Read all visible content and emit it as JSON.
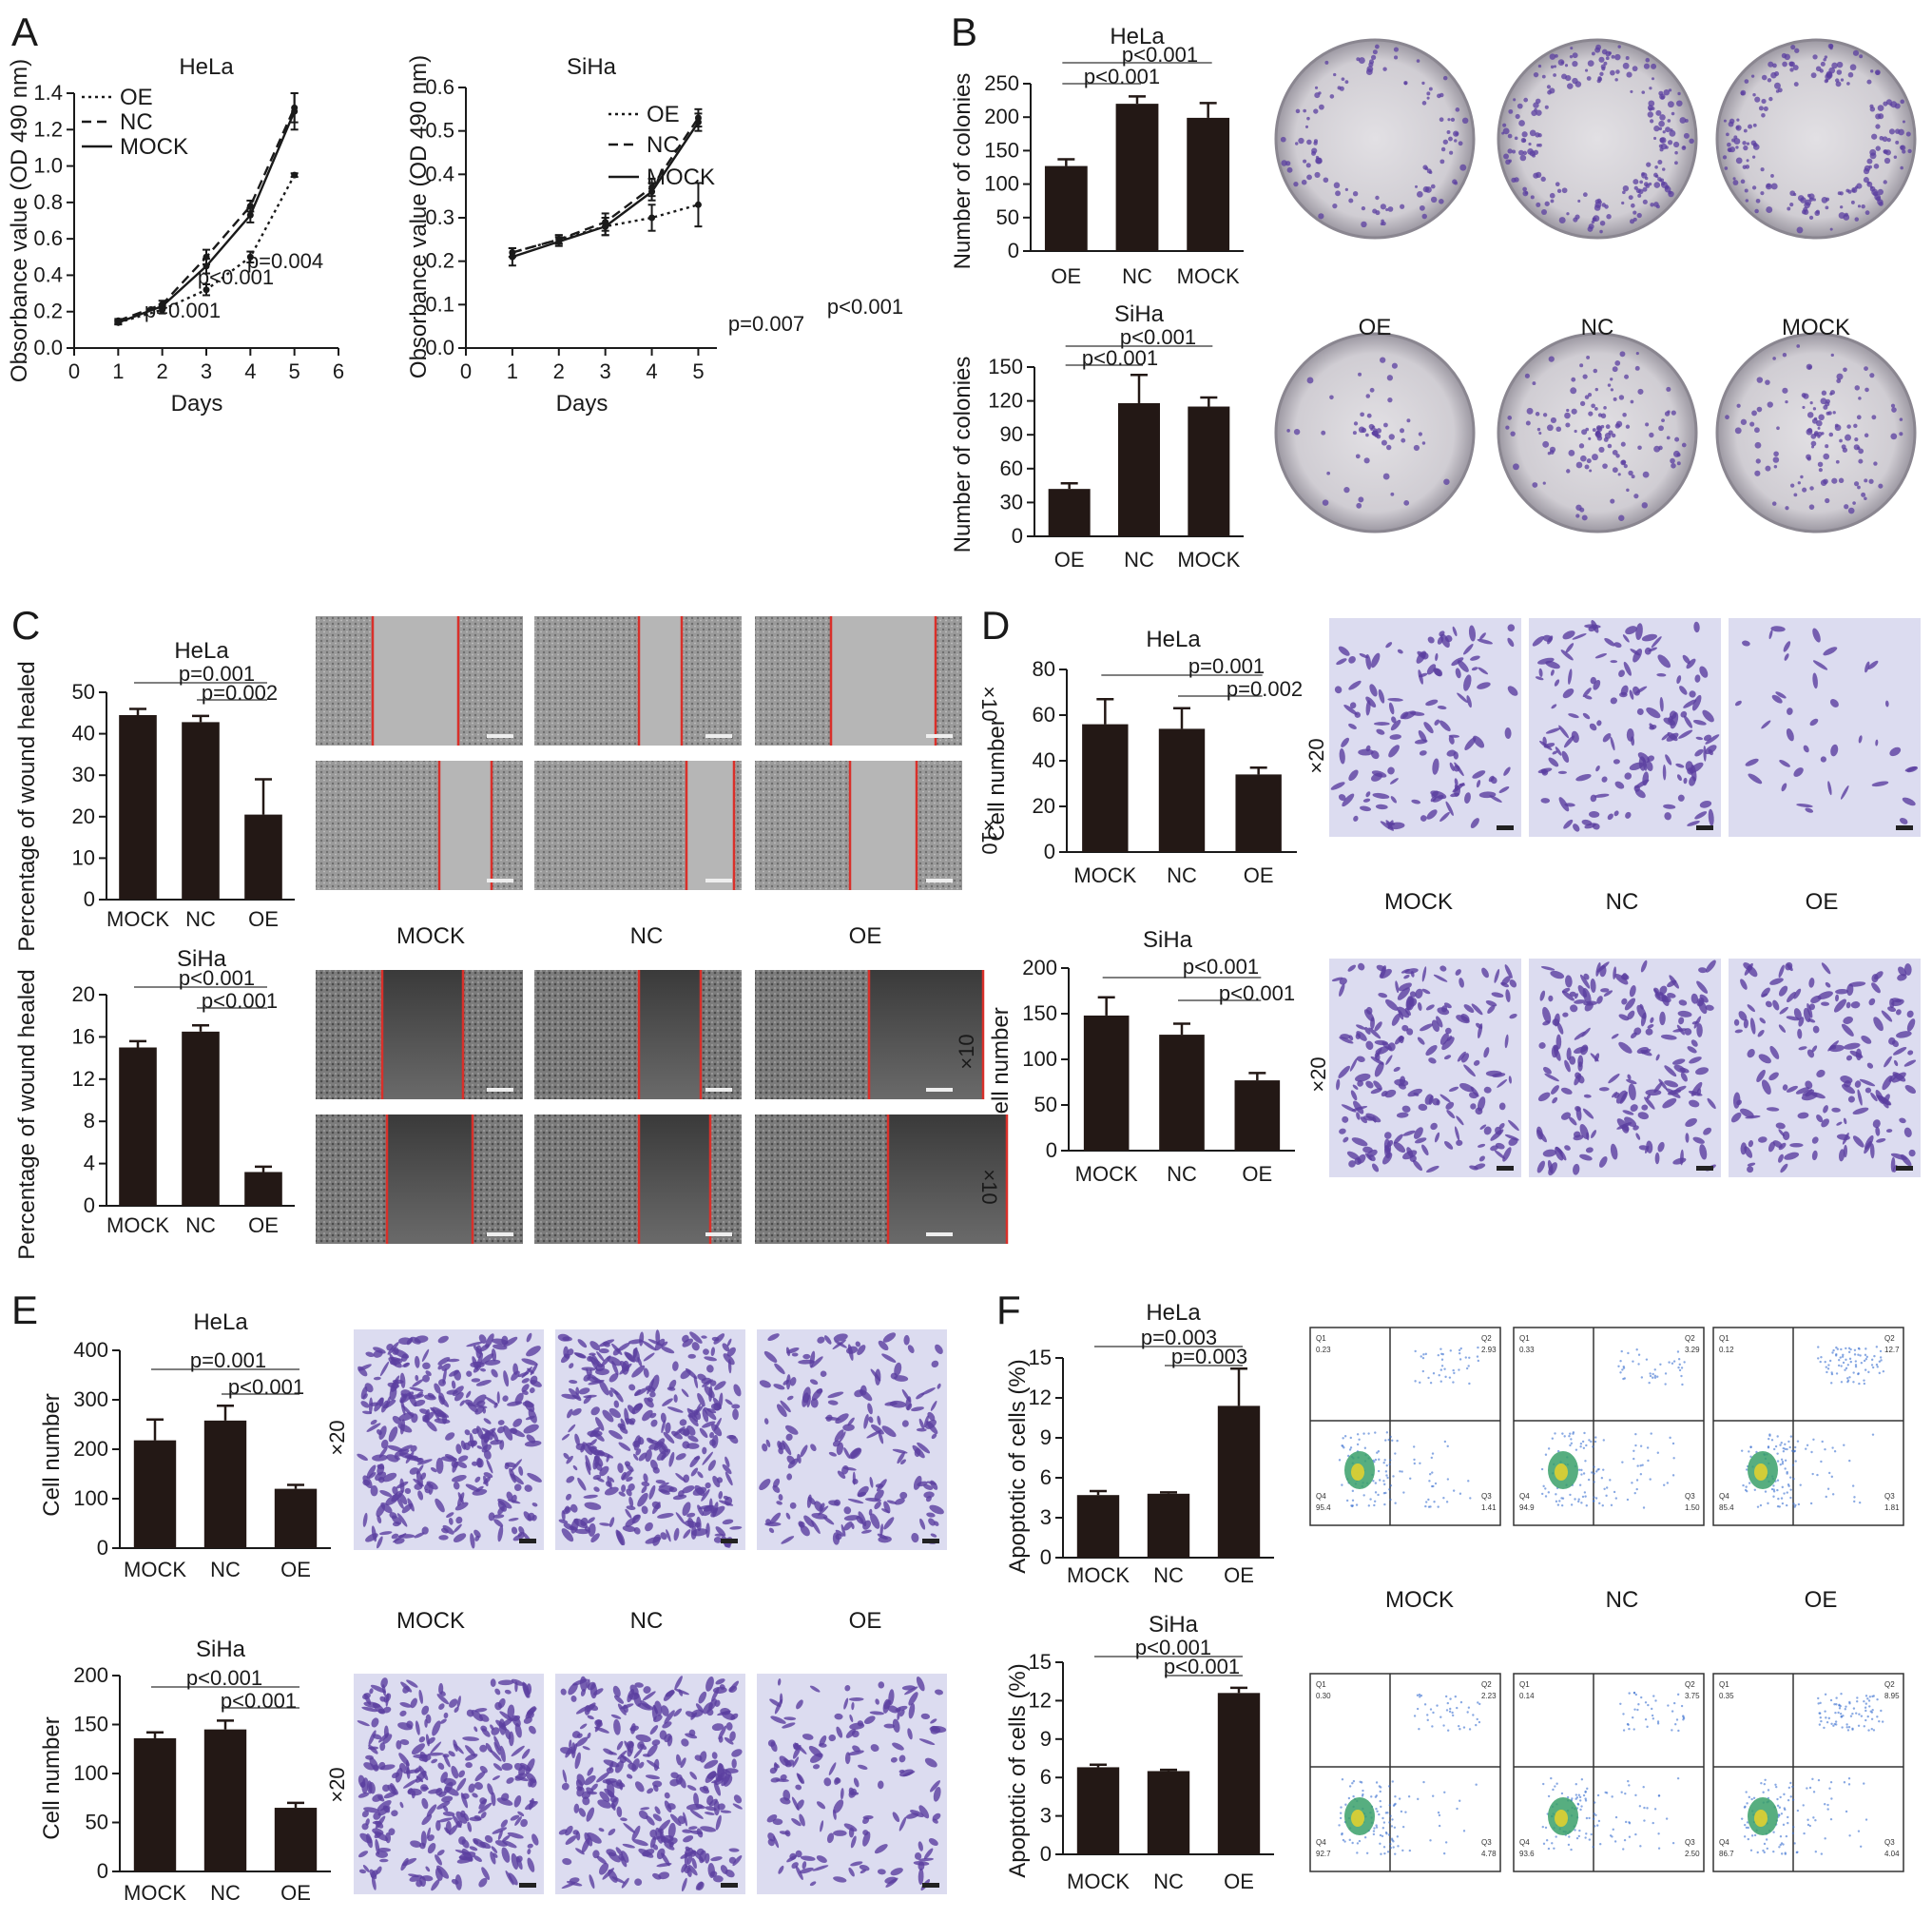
{
  "figure": {
    "panels": [
      "A",
      "B",
      "C",
      "D",
      "E",
      "F"
    ],
    "photo_labels": {
      "B": [
        "OE",
        "NC",
        "MOCK"
      ],
      "C": [
        "MOCK",
        "NC",
        "OE"
      ],
      "D": [
        "MOCK",
        "NC",
        "OE"
      ],
      "E": [
        "MOCK",
        "NC",
        "OE"
      ],
      "F": [
        "MOCK",
        "NC",
        "OE"
      ]
    },
    "magnifications": {
      "C": [
        "×10",
        "×10",
        "×10",
        "×10"
      ],
      "D": [
        "×20",
        "×20"
      ],
      "E": [
        "×20",
        "×20"
      ]
    },
    "flow_quadrants": {
      "hela": [
        {
          "group": "MOCK",
          "Q1": "0.23",
          "Q2": "2.93",
          "Q3": "1.41",
          "Q4": "95.4"
        },
        {
          "group": "NC",
          "Q1": "0.33",
          "Q2": "3.29",
          "Q3": "1.50",
          "Q4": "94.9"
        },
        {
          "group": "OE",
          "Q1": "0.12",
          "Q2": "12.7",
          "Q3": "1.81",
          "Q4": "85.4"
        }
      ],
      "siha": [
        {
          "group": "MOCK",
          "Q1": "0.30",
          "Q2": "2.23",
          "Q3": "4.78",
          "Q4": "92.7"
        },
        {
          "group": "NC",
          "Q1": "0.14",
          "Q2": "3.75",
          "Q3": "2.50",
          "Q4": "93.6"
        },
        {
          "group": "OE",
          "Q1": "0.35",
          "Q2": "8.95",
          "Q3": "4.04",
          "Q4": "86.7"
        }
      ]
    },
    "colors": {
      "bar": "#231815",
      "red_line": "#d9302a",
      "stain": "#5b3fa0",
      "dish": "#d4d2d6"
    }
  },
  "chart_data": [
    {
      "id": "a1",
      "type": "line",
      "title": "HeLa",
      "xlabel": "Days",
      "ylabel": "Obsorbance value (OD 490 nm)",
      "x": [
        1,
        2,
        3,
        4,
        5
      ],
      "xlim": [
        0,
        6
      ],
      "xticks": [
        0,
        1,
        2,
        3,
        4,
        5,
        6
      ],
      "ylim": [
        0,
        1.4
      ],
      "yticks": [
        0.0,
        0.2,
        0.4,
        0.6,
        0.8,
        1.0,
        1.2,
        1.4
      ],
      "ytick_labels": [
        "0.0",
        "0.2",
        "0.4",
        "0.6",
        "0.8",
        "1.0",
        "1.2",
        "1.4"
      ],
      "legend": [
        "OE",
        "NC",
        "MOCK"
      ],
      "legend_position": "top-left",
      "series": [
        {
          "name": "OE",
          "style": "dotted",
          "values": [
            0.14,
            0.21,
            0.32,
            0.5,
            0.95
          ],
          "errors": [
            0.01,
            0.02,
            0.03,
            0.03,
            0.01
          ]
        },
        {
          "name": "NC",
          "style": "dashed",
          "values": [
            0.15,
            0.24,
            0.5,
            0.78,
            1.32
          ],
          "errors": [
            0.01,
            0.02,
            0.04,
            0.03,
            0.08
          ]
        },
        {
          "name": "MOCK",
          "style": "solid",
          "values": [
            0.14,
            0.23,
            0.45,
            0.73,
            1.3
          ],
          "errors": [
            0.01,
            0.01,
            0.04,
            0.04,
            0.1
          ]
        }
      ],
      "annotations": [
        "p=0.001",
        "p<0.001",
        "p=0.004"
      ]
    },
    {
      "id": "a2",
      "type": "line",
      "title": "SiHa",
      "xlabel": "Days",
      "ylabel": "Obsorbance value (OD 490 nm)",
      "x": [
        1,
        2,
        3,
        4,
        5
      ],
      "xlim": [
        0,
        5.4
      ],
      "xticks": [
        0,
        1,
        2,
        3,
        4,
        5
      ],
      "ylim": [
        0,
        0.6
      ],
      "yticks": [
        0.0,
        0.1,
        0.2,
        0.3,
        0.4,
        0.5,
        0.6
      ],
      "ytick_labels": [
        "0.0",
        "0.1",
        "0.2",
        "0.3",
        "0.4",
        "0.5",
        "0.6"
      ],
      "legend": [
        "OE",
        "NC",
        "MOCK"
      ],
      "legend_position": "top-left",
      "series": [
        {
          "name": "OE",
          "style": "dotted",
          "values": [
            0.22,
            0.25,
            0.28,
            0.3,
            0.33
          ],
          "errors": [
            0.01,
            0.01,
            0.02,
            0.03,
            0.05
          ]
        },
        {
          "name": "NC",
          "style": "dashed",
          "values": [
            0.22,
            0.25,
            0.29,
            0.37,
            0.53
          ],
          "errors": [
            0.01,
            0.01,
            0.02,
            0.02,
            0.02
          ]
        },
        {
          "name": "MOCK",
          "style": "solid",
          "values": [
            0.21,
            0.245,
            0.28,
            0.36,
            0.52
          ],
          "errors": [
            0.02,
            0.01,
            0.02,
            0.02,
            0.02
          ]
        }
      ],
      "annotations": [
        "p=0.007",
        "p<0.001"
      ]
    },
    {
      "id": "b1",
      "type": "bar",
      "title": "HeLa",
      "ylabel": "Number of colonies",
      "categories": [
        "OE",
        "NC",
        "MOCK"
      ],
      "values": [
        127,
        220,
        199
      ],
      "errors": [
        10,
        11,
        22
      ],
      "ylim": [
        0,
        250
      ],
      "yticks": [
        0,
        50,
        100,
        150,
        200,
        250
      ],
      "ytick_labels": [
        "0",
        "50",
        "100",
        "150",
        "200",
        "250"
      ],
      "annotations": [
        "p<0.001",
        "p<0.001"
      ],
      "brackets": [
        [
          0,
          2
        ],
        [
          0,
          1
        ]
      ]
    },
    {
      "id": "b2",
      "type": "bar",
      "title": "SiHa",
      "ylabel": "Number of colonies",
      "categories": [
        "OE",
        "NC",
        "MOCK"
      ],
      "values": [
        42,
        118,
        115
      ],
      "errors": [
        5,
        25,
        8
      ],
      "ylim": [
        0,
        150
      ],
      "yticks": [
        0,
        30,
        60,
        90,
        120,
        150
      ],
      "ytick_labels": [
        "0",
        "30",
        "60",
        "90",
        "120",
        "150"
      ],
      "annotations": [
        "p<0.001",
        "p<0.001"
      ],
      "brackets": [
        [
          0,
          2
        ],
        [
          0,
          1
        ]
      ]
    },
    {
      "id": "c1",
      "type": "bar",
      "title": "HeLa",
      "ylabel": "Percentage of wound healed",
      "categories": [
        "MOCK",
        "NC",
        "OE"
      ],
      "values": [
        44.5,
        42.8,
        20.5
      ],
      "errors": [
        1.5,
        1.5,
        8.5
      ],
      "ylim": [
        0,
        50
      ],
      "yticks": [
        0,
        10,
        20,
        30,
        40,
        50
      ],
      "ytick_labels": [
        "0",
        "10",
        "20",
        "30",
        "40",
        "50"
      ],
      "annotations": [
        "p=0.001",
        "p=0.002"
      ],
      "brackets": [
        [
          0,
          2
        ],
        [
          1,
          2
        ]
      ]
    },
    {
      "id": "c2",
      "type": "bar",
      "title": "SiHa",
      "ylabel": "Percentage of wound healed",
      "categories": [
        "MOCK",
        "NC",
        "OE"
      ],
      "values": [
        15.0,
        16.5,
        3.2
      ],
      "errors": [
        0.6,
        0.6,
        0.5
      ],
      "ylim": [
        0,
        20
      ],
      "yticks": [
        0,
        4,
        8,
        12,
        16,
        20
      ],
      "ytick_labels": [
        "0",
        "4",
        "8",
        "12",
        "16",
        "20"
      ],
      "annotations": [
        "p<0.001",
        "p<0.001"
      ],
      "brackets": [
        [
          0,
          2
        ],
        [
          1,
          2
        ]
      ]
    },
    {
      "id": "d1",
      "type": "bar",
      "title": "HeLa",
      "ylabel": "Cell number",
      "categories": [
        "MOCK",
        "NC",
        "OE"
      ],
      "values": [
        56,
        54,
        34
      ],
      "errors": [
        11,
        9,
        3
      ],
      "ylim": [
        0,
        80
      ],
      "yticks": [
        0,
        20,
        40,
        60,
        80
      ],
      "ytick_labels": [
        "0",
        "20",
        "40",
        "60",
        "80"
      ],
      "annotations": [
        "p=0.001",
        "p=0.002"
      ],
      "brackets": [
        [
          0,
          2
        ],
        [
          1,
          2
        ]
      ]
    },
    {
      "id": "d2",
      "type": "bar",
      "title": "SiHa",
      "ylabel": "Cell number",
      "categories": [
        "MOCK",
        "NC",
        "OE"
      ],
      "values": [
        148,
        127,
        77
      ],
      "errors": [
        20,
        12,
        8
      ],
      "ylim": [
        0,
        200
      ],
      "yticks": [
        0,
        50,
        100,
        150,
        200
      ],
      "ytick_labels": [
        "0",
        "50",
        "100",
        "150",
        "200"
      ],
      "annotations": [
        "p<0.001",
        "p<0.001"
      ],
      "brackets": [
        [
          0,
          2
        ],
        [
          1,
          2
        ]
      ]
    },
    {
      "id": "e1",
      "type": "bar",
      "title": "HeLa",
      "ylabel": "Cell number",
      "categories": [
        "MOCK",
        "NC",
        "OE"
      ],
      "values": [
        218,
        258,
        120
      ],
      "errors": [
        42,
        30,
        8
      ],
      "ylim": [
        0,
        400
      ],
      "yticks": [
        0,
        100,
        200,
        300,
        400
      ],
      "ytick_labels": [
        "0",
        "100",
        "200",
        "300",
        "400"
      ],
      "annotations": [
        "p=0.001",
        "p<0.001"
      ],
      "brackets": [
        [
          0,
          2
        ],
        [
          1,
          2
        ]
      ]
    },
    {
      "id": "e2",
      "type": "bar",
      "title": "SiHa",
      "ylabel": "Cell number",
      "categories": [
        "MOCK",
        "NC",
        "OE"
      ],
      "values": [
        136,
        145,
        65
      ],
      "errors": [
        6,
        9,
        5
      ],
      "ylim": [
        0,
        200
      ],
      "yticks": [
        0,
        50,
        100,
        150,
        200
      ],
      "ytick_labels": [
        "0",
        "50",
        "100",
        "150",
        "200"
      ],
      "annotations": [
        "p<0.001",
        "p<0.001"
      ],
      "brackets": [
        [
          0,
          2
        ],
        [
          1,
          2
        ]
      ]
    },
    {
      "id": "f1",
      "type": "bar",
      "title": "HeLa",
      "ylabel": "Apoptotic of cells (%)",
      "categories": [
        "MOCK",
        "NC",
        "OE"
      ],
      "values": [
        4.7,
        4.8,
        11.4
      ],
      "errors": [
        0.3,
        0.1,
        2.8
      ],
      "ylim": [
        0,
        15
      ],
      "yticks": [
        0,
        3,
        6,
        9,
        12,
        15
      ],
      "ytick_labels": [
        "0",
        "3",
        "6",
        "9",
        "12",
        "15"
      ],
      "annotations": [
        "p=0.003",
        "p=0.003"
      ],
      "brackets": [
        [
          0,
          2
        ],
        [
          1,
          2
        ]
      ]
    },
    {
      "id": "f2",
      "type": "bar",
      "title": "SiHa",
      "ylabel": "Apoptotic of cells (%)",
      "categories": [
        "MOCK",
        "NC",
        "OE"
      ],
      "values": [
        6.8,
        6.5,
        12.6
      ],
      "errors": [
        0.2,
        0.1,
        0.4
      ],
      "ylim": [
        0,
        15
      ],
      "yticks": [
        0,
        3,
        6,
        9,
        12,
        15
      ],
      "ytick_labels": [
        "0",
        "3",
        "6",
        "9",
        "12",
        "15"
      ],
      "annotations": [
        "p<0.001",
        "p<0.001"
      ],
      "brackets": [
        [
          0,
          2
        ],
        [
          1,
          2
        ]
      ]
    }
  ]
}
